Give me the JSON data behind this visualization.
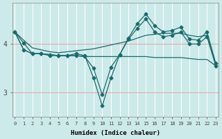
{
  "xlabel": "Humidex (Indice chaleur)",
  "bg_color": "#cdeaea",
  "line_color": "#1a6b6b",
  "grid_color": "#ffffff",
  "grid_color_h": "#f0b0b0",
  "x_values": [
    0,
    1,
    2,
    3,
    4,
    5,
    6,
    7,
    8,
    9,
    10,
    11,
    12,
    13,
    14,
    15,
    16,
    17,
    18,
    19,
    20,
    21,
    22,
    23
  ],
  "line_smooth_top": [
    4.25,
    4.08,
    3.92,
    3.88,
    3.84,
    3.82,
    3.84,
    3.86,
    3.88,
    3.9,
    3.94,
    3.98,
    4.02,
    4.06,
    4.12,
    4.18,
    4.2,
    4.22,
    4.22,
    4.22,
    4.18,
    4.15,
    4.18,
    3.6
  ],
  "line_smooth_bot": [
    4.25,
    3.88,
    3.8,
    3.8,
    3.78,
    3.76,
    3.76,
    3.76,
    3.74,
    3.74,
    3.74,
    3.74,
    3.74,
    3.74,
    3.74,
    3.74,
    3.72,
    3.72,
    3.72,
    3.72,
    3.7,
    3.68,
    3.68,
    3.55
  ],
  "line_jagged1": [
    4.25,
    4.02,
    3.8,
    3.8,
    3.76,
    3.76,
    3.76,
    3.8,
    3.76,
    3.3,
    2.72,
    3.3,
    3.78,
    4.12,
    4.42,
    4.62,
    4.38,
    4.25,
    4.28,
    4.35,
    4.1,
    4.08,
    4.25,
    3.6
  ],
  "line_jagged2": [
    4.25,
    3.88,
    3.8,
    3.8,
    3.78,
    3.76,
    3.76,
    3.76,
    3.74,
    3.5,
    2.95,
    3.52,
    3.78,
    4.1,
    4.32,
    4.52,
    4.25,
    4.15,
    4.18,
    4.25,
    4.0,
    4.0,
    4.15,
    3.55
  ],
  "ylim": [
    2.5,
    4.85
  ],
  "yticks": [
    3,
    4
  ],
  "xlim": [
    -0.3,
    23.3
  ]
}
